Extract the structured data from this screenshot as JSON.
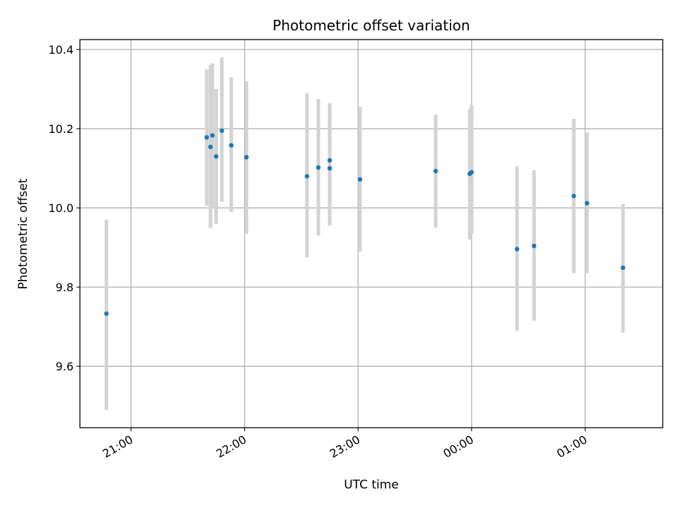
{
  "chart_data": {
    "type": "scatter",
    "title": "Photometric offset variation",
    "xlabel": "UTC time",
    "ylabel": "Photometric offset",
    "x_tick_labels": [
      "21:00",
      "22:00",
      "23:00",
      "00:00",
      "01:00"
    ],
    "x_ticks": [
      "21:00",
      "22:00",
      "23:00",
      "00:00",
      "01:00"
    ],
    "y_tick_labels": [
      "9.6",
      "9.8",
      "10.0",
      "10.2",
      "10.4"
    ],
    "y_ticks": [
      9.6,
      9.8,
      10.0,
      10.2,
      10.4
    ],
    "xlim": [
      "20:33",
      "01:41"
    ],
    "ylim": [
      9.445,
      10.425
    ],
    "grid": true,
    "marker_color": "#1f77b4",
    "errorbar_color": "#d3d3d3",
    "points": [
      {
        "x": "20:47",
        "y": 9.733,
        "ylow": 9.49,
        "yhigh": 9.97
      },
      {
        "x": "21:40",
        "y": 10.178,
        "ylow": 10.005,
        "yhigh": 10.35
      },
      {
        "x": "21:42",
        "y": 10.154,
        "ylow": 9.95,
        "yhigh": 10.36
      },
      {
        "x": "21:43",
        "y": 10.183,
        "ylow": 10.0,
        "yhigh": 10.365
      },
      {
        "x": "21:45",
        "y": 10.13,
        "ylow": 9.96,
        "yhigh": 10.3
      },
      {
        "x": "21:48",
        "y": 10.195,
        "ylow": 10.015,
        "yhigh": 10.38
      },
      {
        "x": "21:53",
        "y": 10.158,
        "ylow": 9.99,
        "yhigh": 10.33
      },
      {
        "x": "22:01",
        "y": 10.128,
        "ylow": 9.935,
        "yhigh": 10.32
      },
      {
        "x": "22:33",
        "y": 10.08,
        "ylow": 9.875,
        "yhigh": 10.29
      },
      {
        "x": "22:39",
        "y": 10.102,
        "ylow": 9.93,
        "yhigh": 10.275
      },
      {
        "x": "22:45",
        "y": 10.1,
        "ylow": 9.955,
        "yhigh": 10.25
      },
      {
        "x": "22:45",
        "y": 10.12,
        "ylow": 9.99,
        "yhigh": 10.265
      },
      {
        "x": "23:01",
        "y": 10.072,
        "ylow": 9.89,
        "yhigh": 10.255
      },
      {
        "x": "23:41",
        "y": 10.093,
        "ylow": 9.95,
        "yhigh": 10.235
      },
      {
        "x": "23:59",
        "y": 10.086,
        "ylow": 9.92,
        "yhigh": 10.25
      },
      {
        "x": "00:00",
        "y": 10.09,
        "ylow": 9.935,
        "yhigh": 10.26
      },
      {
        "x": "00:24",
        "y": 9.896,
        "ylow": 9.69,
        "yhigh": 10.105
      },
      {
        "x": "00:33",
        "y": 9.904,
        "ylow": 9.715,
        "yhigh": 10.095
      },
      {
        "x": "00:54",
        "y": 10.03,
        "ylow": 9.835,
        "yhigh": 10.225
      },
      {
        "x": "01:01",
        "y": 10.012,
        "ylow": 9.835,
        "yhigh": 10.19
      },
      {
        "x": "01:20",
        "y": 9.849,
        "ylow": 9.685,
        "yhigh": 10.01
      }
    ]
  }
}
